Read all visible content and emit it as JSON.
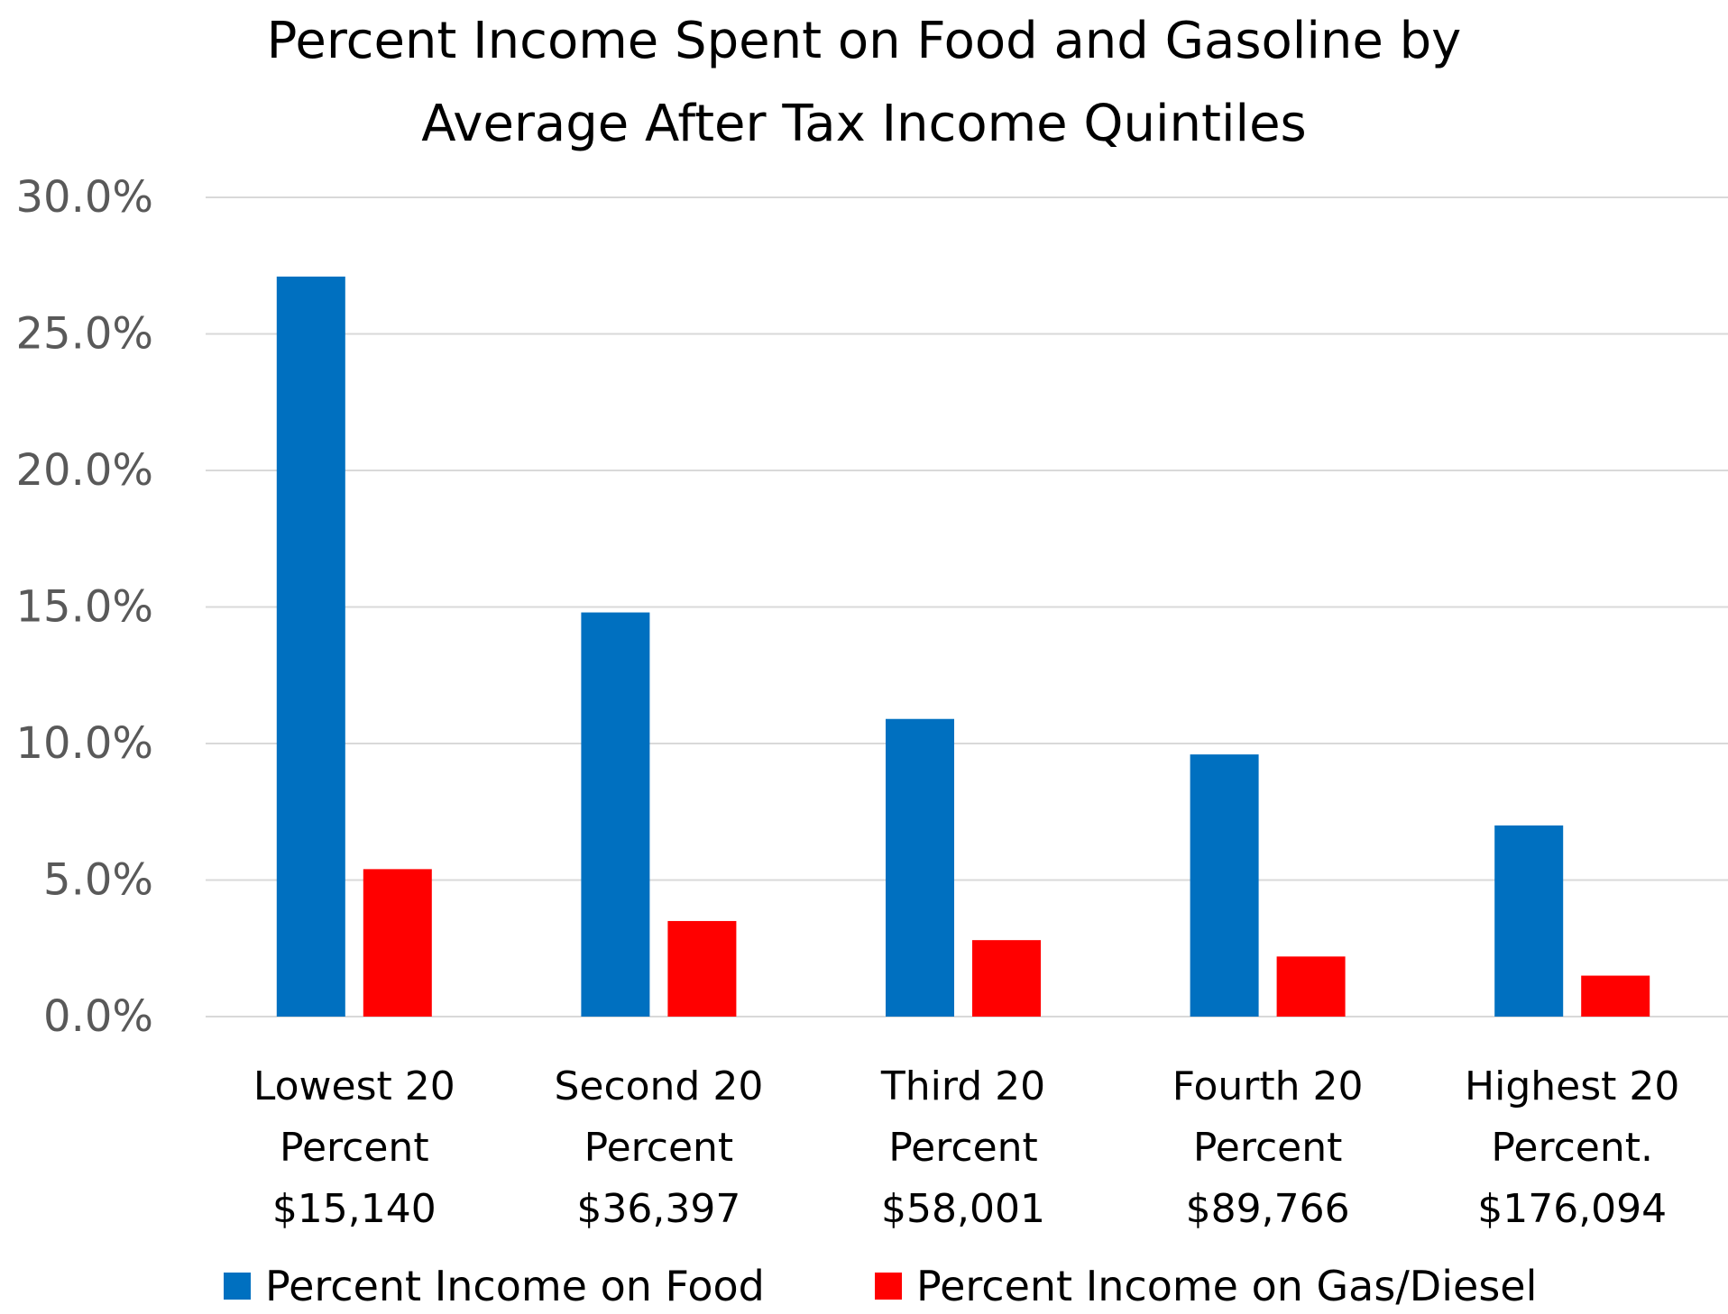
{
  "chart_data": {
    "type": "bar",
    "title": [
      "Percent Income Spent on Food and Gasoline by",
      "Average After Tax Income Quintiles"
    ],
    "categories": [
      [
        "Lowest 20",
        "Percent",
        "$15,140"
      ],
      [
        "Second 20",
        "Percent",
        "$36,397"
      ],
      [
        "Third 20",
        "Percent",
        "$58,001"
      ],
      [
        "Fourth 20",
        "Percent",
        "$89,766"
      ],
      [
        "Highest 20",
        "Percent.",
        "$176,094"
      ]
    ],
    "series": [
      {
        "name": "Percent Income on Food",
        "color": "#0070C0",
        "values": [
          27.1,
          14.8,
          10.9,
          9.6,
          7.0
        ]
      },
      {
        "name": "Percent Income on Gas/Diesel",
        "color": "#FF0000",
        "values": [
          5.4,
          3.5,
          2.8,
          2.2,
          1.5
        ]
      }
    ],
    "yticks": [
      "0.0%",
      "5.0%",
      "10.0%",
      "15.0%",
      "20.0%",
      "25.0%",
      "30.0%"
    ],
    "ylim": [
      0,
      30
    ],
    "grid": true,
    "legend": "bottom",
    "xlabel": "",
    "ylabel": ""
  }
}
